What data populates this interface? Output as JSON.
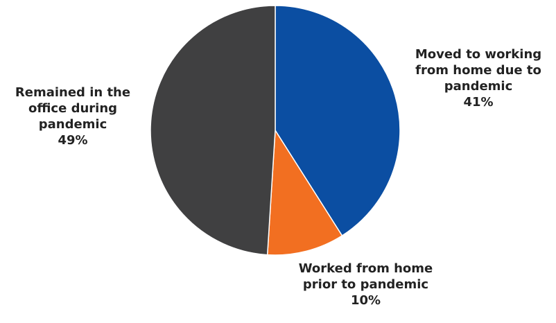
{
  "chart_data": {
    "type": "pie",
    "categories": [
      "Moved to working from home due to pandemic",
      "Worked from home prior to pandemic",
      "Remained in the office during pandemic"
    ],
    "values": [
      41,
      10,
      49
    ],
    "value_labels": [
      "41%",
      "10%",
      "49%"
    ],
    "colors": [
      "#0b4ea2",
      "#f26f21",
      "#404041"
    ]
  }
}
